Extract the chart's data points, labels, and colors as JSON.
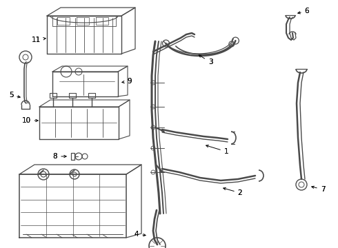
{
  "bg_color": "#ffffff",
  "line_color": "#4a4a4a",
  "label_color": "#000000",
  "fig_width": 4.9,
  "fig_height": 3.6,
  "dpi": 100
}
